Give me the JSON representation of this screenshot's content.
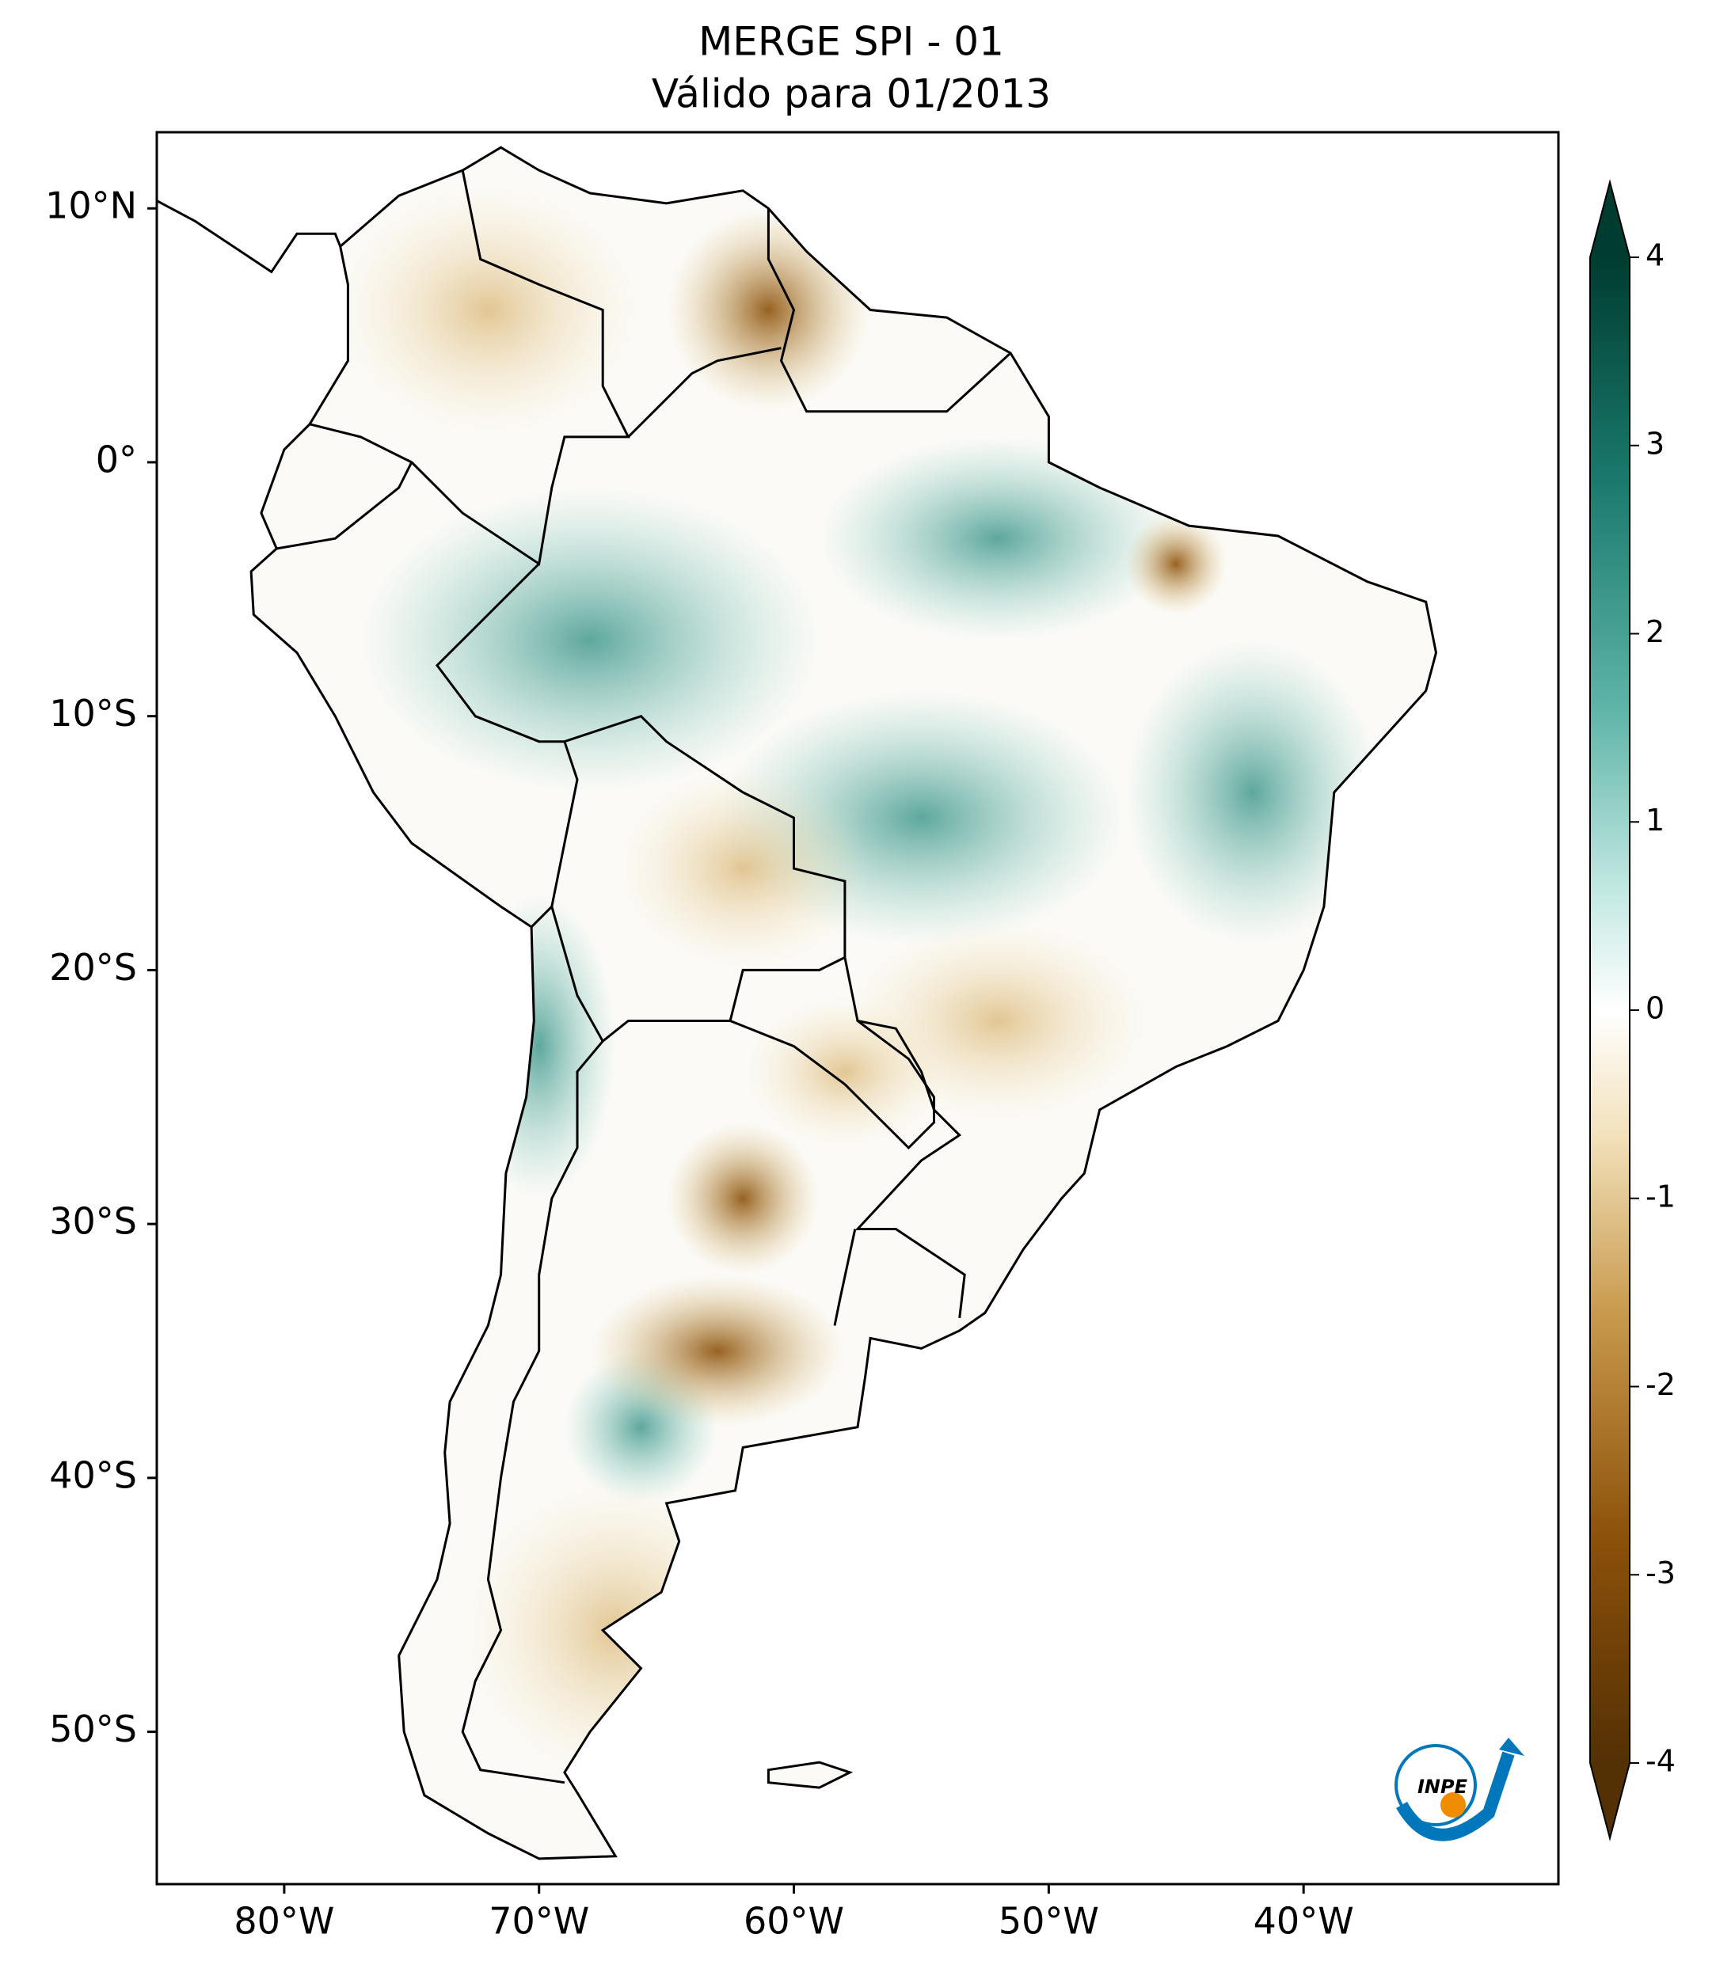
{
  "title": "MERGE   SPI - 01",
  "subtitle": "Válido para 01/2013",
  "map": {
    "xlim": [
      -85,
      -30
    ],
    "ylim": [
      -56,
      13
    ],
    "xticks": [
      {
        "value": -80,
        "label": "80°W"
      },
      {
        "value": -70,
        "label": "70°W"
      },
      {
        "value": -60,
        "label": "60°W"
      },
      {
        "value": -50,
        "label": "50°W"
      },
      {
        "value": -40,
        "label": "40°W"
      }
    ],
    "yticks": [
      {
        "value": 10,
        "label": "10°N"
      },
      {
        "value": 0,
        "label": "0°"
      },
      {
        "value": -10,
        "label": "10°S"
      },
      {
        "value": -20,
        "label": "20°S"
      },
      {
        "value": -30,
        "label": "30°S"
      },
      {
        "value": -40,
        "label": "40°S"
      },
      {
        "value": -50,
        "label": "50°S"
      }
    ]
  },
  "colorbar": {
    "range": [
      -4,
      4
    ],
    "ticks": [
      -4,
      -3,
      -2,
      -1,
      0,
      1,
      2,
      3,
      4
    ]
  },
  "logo": "INPE"
}
